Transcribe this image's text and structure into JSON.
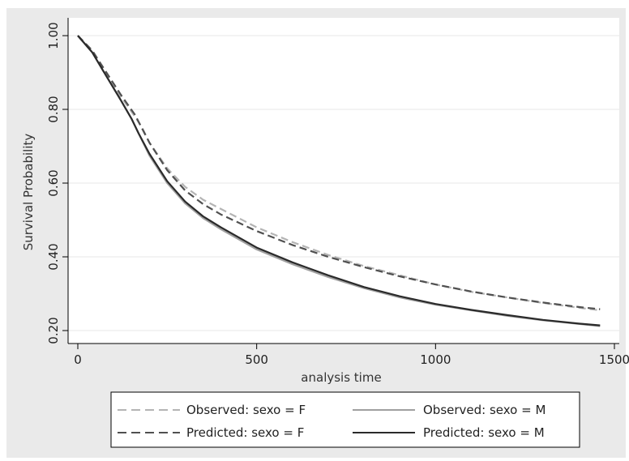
{
  "chart_data": {
    "type": "line",
    "title": "",
    "xlabel": "analysis time",
    "ylabel": "Survival Probability",
    "xlim": [
      0,
      1500
    ],
    "ylim": [
      0.2,
      1.0
    ],
    "x_ticks": [
      0,
      500,
      1000,
      1500
    ],
    "x_tick_labels": [
      "0",
      "500",
      "1000",
      "1500"
    ],
    "y_ticks": [
      0.2,
      0.4,
      0.6,
      0.8,
      1.0
    ],
    "y_tick_labels": [
      "0.20",
      "0.40",
      "0.60",
      "0.80",
      "1.00"
    ],
    "grid": "horizontal",
    "legend_position": "bottom",
    "series": [
      {
        "name": "Observed: sexo = F",
        "color": "#b4b4b4",
        "style": "dashed",
        "x": [
          0,
          40,
          80,
          120,
          160,
          180,
          200,
          250,
          300,
          350,
          400,
          500,
          600,
          700,
          800,
          900,
          1000,
          1100,
          1200,
          1300,
          1400,
          1460
        ],
        "y": [
          1.0,
          0.955,
          0.895,
          0.835,
          0.78,
          0.75,
          0.71,
          0.64,
          0.59,
          0.555,
          0.53,
          0.48,
          0.44,
          0.405,
          0.375,
          0.35,
          0.325,
          0.305,
          0.29,
          0.275,
          0.262,
          0.255
        ]
      },
      {
        "name": "Observed: sexo = M",
        "color": "#a0a0a0",
        "style": "solid",
        "x": [
          0,
          40,
          80,
          120,
          150,
          170,
          200,
          250,
          300,
          350,
          400,
          500,
          600,
          700,
          800,
          900,
          1000,
          1100,
          1200,
          1300,
          1400,
          1460
        ],
        "y": [
          1.0,
          0.955,
          0.89,
          0.825,
          0.775,
          0.735,
          0.675,
          0.6,
          0.545,
          0.505,
          0.475,
          0.42,
          0.38,
          0.345,
          0.315,
          0.29,
          0.27,
          0.255,
          0.24,
          0.228,
          0.218,
          0.212
        ]
      },
      {
        "name": "Predicted: sexo = F",
        "color": "#505050",
        "style": "dashed",
        "x": [
          0,
          40,
          80,
          120,
          160,
          200,
          250,
          300,
          350,
          400,
          500,
          600,
          700,
          800,
          900,
          1000,
          1100,
          1200,
          1300,
          1400,
          1460
        ],
        "y": [
          1.0,
          0.96,
          0.9,
          0.84,
          0.785,
          0.71,
          0.635,
          0.58,
          0.543,
          0.515,
          0.47,
          0.432,
          0.4,
          0.372,
          0.347,
          0.325,
          0.306,
          0.29,
          0.276,
          0.264,
          0.258
        ]
      },
      {
        "name": "Predicted: sexo = M",
        "color": "#2a2a2a",
        "style": "solid",
        "x": [
          0,
          40,
          80,
          120,
          150,
          170,
          200,
          250,
          300,
          350,
          400,
          500,
          600,
          700,
          800,
          900,
          1000,
          1100,
          1200,
          1300,
          1400,
          1460
        ],
        "y": [
          1.0,
          0.955,
          0.89,
          0.825,
          0.775,
          0.735,
          0.68,
          0.605,
          0.55,
          0.51,
          0.48,
          0.425,
          0.385,
          0.35,
          0.318,
          0.293,
          0.272,
          0.256,
          0.242,
          0.229,
          0.219,
          0.214
        ]
      }
    ]
  }
}
